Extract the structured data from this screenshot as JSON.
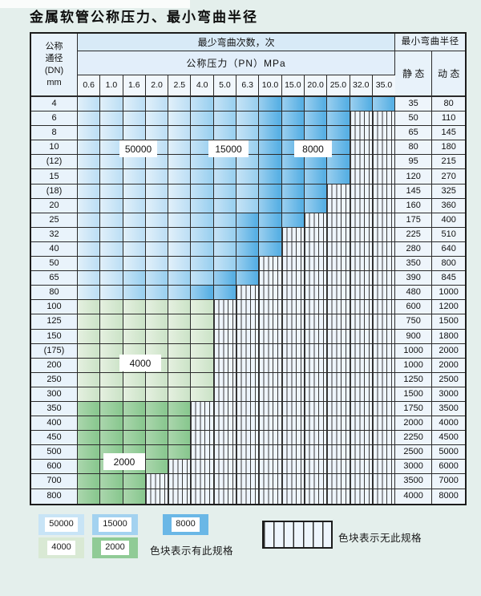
{
  "title": "金属软管公称压力、最小弯曲半径",
  "table": {
    "header": {
      "dn": "公称\n通径\n(DN)\nmm",
      "bend_cycles": "最少弯曲次数，次",
      "pressure": "公称压力（PN）MPa",
      "radius": "最小弯曲半径",
      "static": "静 态",
      "dynamic": "动 态",
      "pressures": [
        "0.6",
        "1.0",
        "1.6",
        "2.0",
        "2.5",
        "4.0",
        "5.0",
        "6.3",
        "10.0",
        "15.0",
        "20.0",
        "25.0",
        "32.0",
        "35.0"
      ]
    },
    "zone_colors": {
      "cycles_50000": "#c8e4f6",
      "cycles_15000": "#a3d2f0",
      "cycles_8000": "#6ab7e6",
      "cycles_4000": "#d9e9d4",
      "cycles_2000": "#90cb96"
    },
    "rows": [
      {
        "dn": "4",
        "cells": "LLLLLMMMDDDDDD",
        "static": "35",
        "dynamic": "80"
      },
      {
        "dn": "6",
        "cells": "LLLLLMMMDDDDxx",
        "static": "50",
        "dynamic": "110"
      },
      {
        "dn": "8",
        "cells": "LLLLLMMMDDDDxx",
        "static": "65",
        "dynamic": "145"
      },
      {
        "dn": "10",
        "cells": "LLLLLMMMDDDDxx",
        "static": "80",
        "dynamic": "180"
      },
      {
        "dn": "(12)",
        "cells": "LLLLLMMMDDDDxx",
        "static": "95",
        "dynamic": "215"
      },
      {
        "dn": "15",
        "cells": "LLLLLMMMDDDDxx",
        "static": "120",
        "dynamic": "270"
      },
      {
        "dn": "(18)",
        "cells": "LLLLLMMMDDDxxx",
        "static": "145",
        "dynamic": "325"
      },
      {
        "dn": "20",
        "cells": "LLLLLMMMDDDxxx",
        "static": "160",
        "dynamic": "360"
      },
      {
        "dn": "25",
        "cells": "LLLLLMMDDDxxxx",
        "static": "175",
        "dynamic": "400"
      },
      {
        "dn": "32",
        "cells": "LLLLLMMDDxxxxx",
        "static": "225",
        "dynamic": "510"
      },
      {
        "dn": "40",
        "cells": "LLLLLMMDDxxxxx",
        "static": "280",
        "dynamic": "640"
      },
      {
        "dn": "50",
        "cells": "LLLLLMMDxxxxxx",
        "static": "350",
        "dynamic": "800"
      },
      {
        "dn": "65",
        "cells": "LLMMMMDDxxxxxx",
        "static": "390",
        "dynamic": "845"
      },
      {
        "dn": "80",
        "cells": "LLMMMDDxxxxxxx",
        "static": "480",
        "dynamic": "1000"
      },
      {
        "dn": "100",
        "cells": "ggggggxxxxxxxx",
        "static": "600",
        "dynamic": "1200"
      },
      {
        "dn": "125",
        "cells": "ggggggxxxxxxxx",
        "static": "750",
        "dynamic": "1500"
      },
      {
        "dn": "150",
        "cells": "ggggggxxxxxxxx",
        "static": "900",
        "dynamic": "1800"
      },
      {
        "dn": "(175)",
        "cells": "ggggggxxxxxxxx",
        "static": "1000",
        "dynamic": "2000"
      },
      {
        "dn": "200",
        "cells": "ggggggxxxxxxxx",
        "static": "1000",
        "dynamic": "2000"
      },
      {
        "dn": "250",
        "cells": "ggggggxxxxxxxx",
        "static": "1250",
        "dynamic": "2500"
      },
      {
        "dn": "300",
        "cells": "ggggggxxxxxxxx",
        "static": "1500",
        "dynamic": "3000"
      },
      {
        "dn": "350",
        "cells": "GGGGGxxxxxxxxx",
        "static": "1750",
        "dynamic": "3500"
      },
      {
        "dn": "400",
        "cells": "GGGGGxxxxxxxxx",
        "static": "2000",
        "dynamic": "4000"
      },
      {
        "dn": "450",
        "cells": "GGGGGxxxxxxxxx",
        "static": "2250",
        "dynamic": "4500"
      },
      {
        "dn": "500",
        "cells": "GGGGGxxxxxxxxx",
        "static": "2500",
        "dynamic": "5000"
      },
      {
        "dn": "600",
        "cells": "GGGGxxxxxxxxxx",
        "static": "3000",
        "dynamic": "6000"
      },
      {
        "dn": "700",
        "cells": "GGGxxxxxxxxxxx",
        "static": "3500",
        "dynamic": "7000"
      },
      {
        "dn": "800",
        "cells": "GGGxxxxxxxxxxx",
        "static": "4000",
        "dynamic": "8000"
      }
    ]
  },
  "overlays": [
    {
      "label": "50000"
    },
    {
      "label": "15000"
    },
    {
      "label": "8000"
    },
    {
      "label": "4000"
    },
    {
      "label": "2000"
    }
  ],
  "legend": {
    "items": [
      {
        "label": "50000",
        "color": "#c8e4f6"
      },
      {
        "label": "15000",
        "color": "#a3d2f0"
      },
      {
        "label": "8000",
        "color": "#6ab7e6"
      },
      {
        "label": "4000",
        "color": "#d9e9d4"
      },
      {
        "label": "2000",
        "color": "#90cb96"
      }
    ],
    "has_spec_text": "色块表示有此规格",
    "no_spec_text": "色块表示无此规格"
  }
}
